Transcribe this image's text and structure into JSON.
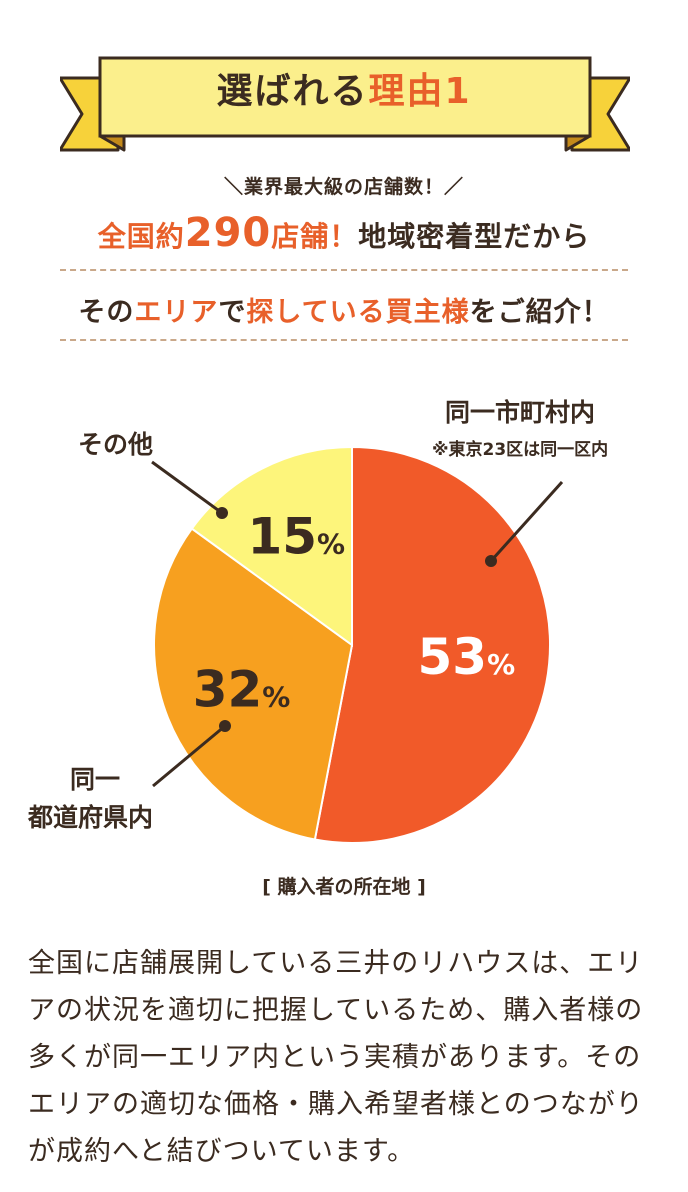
{
  "banner": {
    "title_prefix": "選ばれる",
    "title_accent": "理由",
    "title_number": "1",
    "ribbon_fill": "#fbef8c",
    "ribbon_fold": "#f7d23a",
    "ribbon_stroke": "#3b2b20"
  },
  "headline": {
    "line1": "＼業界最大級の店舗数！／",
    "line2_a": "全国約",
    "line2_number": "290",
    "line2_b": "店舗！",
    "line2_c": "地域密着型だから",
    "line3_a": "その",
    "line3_b": "エリア",
    "line3_c": "で",
    "line3_d": "探している買主様",
    "line3_e": "をご紹介！"
  },
  "chart_data": {
    "type": "pie",
    "caption": "[ 購入者の所在地 ]",
    "slices": [
      {
        "label": "同一市町村内",
        "note": "※東京23区は同一区内",
        "value": 53,
        "display": "53%",
        "color": "#f15a29"
      },
      {
        "label": "同一都道府県内",
        "value": 32,
        "display": "32%",
        "color": "#f7a01f"
      },
      {
        "label": "その他",
        "value": 15,
        "display": "15%",
        "color": "#fdf57b"
      }
    ],
    "outline_color": "#ffffff"
  },
  "labels": {
    "same_city": "同一市町村内",
    "same_city_note": "※東京23区は同一区内",
    "other": "その他",
    "pref_line1": "同一",
    "pref_line2": "都道府県内"
  },
  "body": {
    "paragraph": "全国に店舗展開している三井のリハウスは、エリアの状況を適切に把握しているため、購入者様の多くが同一エリア内という実積があります。そのエリアの適切な価格・購入希望者様とのつながりが成約へと結びついています。"
  },
  "colors": {
    "accent": "#e8602a",
    "text": "#3b2b20",
    "dash": "#c9a88a"
  }
}
